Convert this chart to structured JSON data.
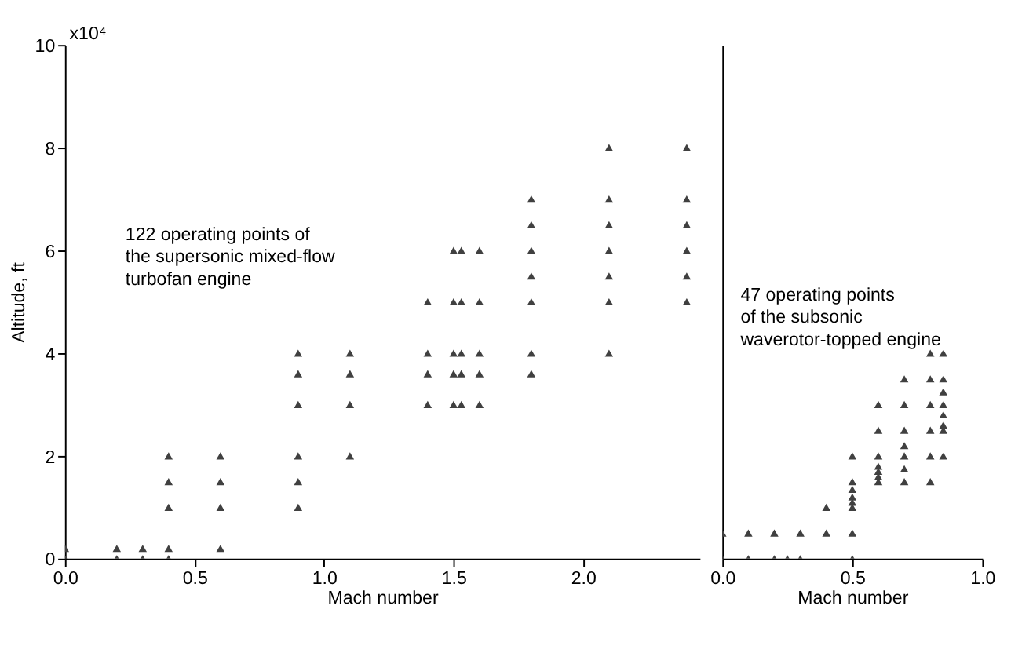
{
  "chart_data": [
    {
      "type": "scatter",
      "xlabel": "Mach number",
      "ylabel": "Altitude, ft",
      "xlim": [
        0,
        2.45
      ],
      "xticks": [
        {
          "value": 0,
          "label": "0.0"
        },
        {
          "value": 0.5,
          "label": "0.5"
        },
        {
          "value": 1,
          "label": "1.0"
        },
        {
          "value": 1.5,
          "label": "1.5"
        },
        {
          "value": 2,
          "label": "2.0"
        }
      ],
      "ylim": [
        0,
        10
      ],
      "yticks": [
        0,
        2,
        4,
        6,
        8,
        10
      ],
      "annotations": [
        "x10⁴",
        "122 operating points of\nthe supersonic mixed-flow\nturbofan engine"
      ],
      "marker": "triangle",
      "grid": false,
      "series": [
        {
          "color": "#404040",
          "x": [
            0,
            0,
            0.2,
            0.2,
            0.3,
            0.3,
            0.4,
            0.4,
            0.4,
            0.4,
            0.4,
            0.6,
            0.6,
            0.6,
            0.6,
            0.9,
            0.9,
            0.9,
            0.9,
            0.9,
            0.9,
            1.1,
            1.1,
            1.1,
            1.1,
            1.4,
            1.4,
            1.4,
            1.4,
            1.5,
            1.5,
            1.5,
            1.5,
            1.5,
            1.53,
            1.53,
            1.53,
            1.53,
            1.53,
            1.6,
            1.6,
            1.6,
            1.6,
            1.6,
            1.8,
            1.8,
            1.8,
            1.8,
            1.8,
            1.8,
            1.8,
            2.1,
            2.1,
            2.1,
            2.1,
            2.1,
            2.1,
            2.1,
            2.4,
            2.4,
            2.4,
            2.4,
            2.4,
            2.4
          ],
          "values": [
            0,
            0.2,
            0,
            0.2,
            0,
            0.2,
            0,
            0.2,
            1,
            1.5,
            2,
            0.2,
            1,
            1.5,
            2,
            1,
            1.5,
            2,
            3,
            3.6,
            4,
            2,
            3,
            3.6,
            4,
            3,
            3.6,
            4,
            5,
            3,
            3.6,
            4,
            5,
            6,
            3,
            3.6,
            4,
            5,
            6,
            3,
            3.6,
            4,
            5,
            6,
            3.6,
            4,
            5,
            5.5,
            6,
            6.5,
            7,
            4,
            5,
            5.5,
            6,
            6.5,
            7,
            8,
            5,
            5.5,
            6,
            6.5,
            7,
            8
          ]
        }
      ]
    },
    {
      "type": "scatter",
      "xlabel": "Mach number",
      "xlim": [
        0,
        1
      ],
      "xticks": [
        {
          "value": 0,
          "label": "0.0"
        },
        {
          "value": 0.5,
          "label": "0.5"
        },
        {
          "value": 1,
          "label": "1.0"
        }
      ],
      "ylim": [
        0,
        10
      ],
      "tick_labels": "x",
      "marker": "triangle",
      "grid": false,
      "annotations": [
        "47 operating points\nof the subsonic\nwaverotor-topped engine"
      ],
      "series": [
        {
          "color": "#404040",
          "x": [
            0,
            0,
            0.1,
            0.1,
            0.2,
            0.2,
            0.25,
            0.3,
            0.3,
            0.4,
            0.4,
            0.5,
            0.5,
            0.5,
            0.5,
            0.5,
            0.5,
            0.5,
            0.5,
            0.6,
            0.6,
            0.6,
            0.6,
            0.6,
            0.6,
            0.6,
            0.7,
            0.7,
            0.7,
            0.7,
            0.7,
            0.7,
            0.7,
            0.8,
            0.8,
            0.8,
            0.8,
            0.8,
            0.8,
            0.85,
            0.85,
            0.85,
            0.85,
            0.85,
            0.85,
            0.85,
            0.85
          ],
          "values": [
            0,
            0.5,
            0,
            0.5,
            0,
            0.5,
            0,
            0,
            0.5,
            0.5,
            1,
            0,
            0.5,
            1,
            1.1,
            1.2,
            1.35,
            1.5,
            2,
            1.5,
            1.6,
            1.7,
            1.8,
            2,
            2.5,
            3,
            1.5,
            1.75,
            2,
            2.2,
            2.5,
            3,
            3.5,
            1.5,
            2,
            2.5,
            3,
            3.5,
            4,
            2,
            2.5,
            2.6,
            2.8,
            3,
            3.25,
            3.5,
            4
          ]
        }
      ]
    }
  ]
}
